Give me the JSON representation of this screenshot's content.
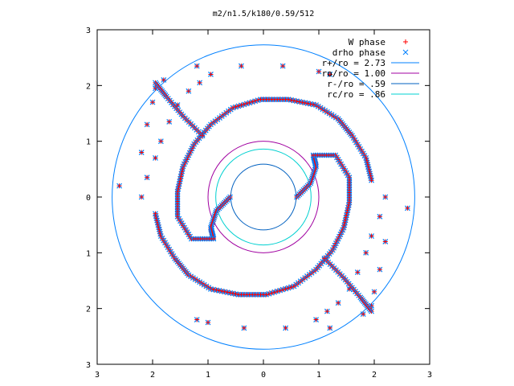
{
  "chart_data": {
    "type": "scatter",
    "title": "m2/n1.5/k180/0.59/512",
    "xlabel": "",
    "ylabel": "",
    "xlim": [
      -3,
      3
    ],
    "ylim": [
      -3,
      3
    ],
    "grid": false,
    "legend_position": "top-right",
    "x_ticks": [
      -3,
      -2,
      -1,
      0,
      1,
      2,
      3
    ],
    "y_ticks": [
      -3,
      -2,
      -1,
      0,
      1,
      2,
      3
    ],
    "x_tick_labels": [
      "3",
      "2",
      "1",
      "0",
      "1",
      "2",
      "3"
    ],
    "y_tick_labels": [
      "3",
      "2",
      "1",
      "0",
      "1",
      "2",
      "3"
    ],
    "series": [
      {
        "name": "W phase",
        "marker": "plus",
        "color": "#ff0000"
      },
      {
        "name": "drho phase",
        "marker": "cross",
        "color": "#0080ff"
      }
    ],
    "circles": [
      {
        "name": "r+/ro = 2.73",
        "radius": 2.73,
        "color": "#0080ff"
      },
      {
        "name": "ro/ro = 1.00",
        "radius": 1.0,
        "color": "#a000a0"
      },
      {
        "name": "r-/ro = .59",
        "radius": 0.59,
        "color": "#0060c0"
      },
      {
        "name": "rc/ro = .86",
        "radius": 0.86,
        "color": "#00d0d0"
      }
    ],
    "point_groups": [
      {
        "arm": "outer-upper",
        "values": [
          [
            -2.6,
            0.2
          ],
          [
            -2.2,
            0.8
          ],
          [
            -2.1,
            1.3
          ],
          [
            -2.0,
            1.7
          ],
          [
            -1.95,
            1.95
          ],
          [
            -1.8,
            2.1
          ],
          [
            -1.2,
            2.35
          ],
          [
            -0.4,
            2.35
          ],
          [
            0.35,
            2.35
          ],
          [
            1.0,
            2.25
          ],
          [
            1.2,
            2.2
          ]
        ]
      },
      {
        "arm": "outer-lower",
        "values": [
          [
            2.6,
            -0.2
          ],
          [
            2.2,
            -0.8
          ],
          [
            2.1,
            -1.3
          ],
          [
            2.0,
            -1.7
          ],
          [
            1.95,
            -1.95
          ],
          [
            1.8,
            -2.1
          ],
          [
            1.2,
            -2.35
          ],
          [
            0.4,
            -2.35
          ],
          [
            -0.35,
            -2.35
          ],
          [
            -1.0,
            -2.25
          ],
          [
            -1.2,
            -2.2
          ]
        ]
      },
      {
        "arm": "mid-ring-left",
        "values": [
          [
            -2.2,
            0.0
          ],
          [
            -2.1,
            0.35
          ],
          [
            -1.95,
            0.7
          ],
          [
            -1.85,
            1.0
          ],
          [
            -1.7,
            1.35
          ],
          [
            -1.55,
            1.65
          ],
          [
            -1.35,
            1.9
          ],
          [
            -1.15,
            2.05
          ],
          [
            -0.95,
            2.2
          ]
        ]
      },
      {
        "arm": "mid-ring-right",
        "values": [
          [
            2.2,
            0.0
          ],
          [
            2.1,
            -0.35
          ],
          [
            1.95,
            -0.7
          ],
          [
            1.85,
            -1.0
          ],
          [
            1.7,
            -1.35
          ],
          [
            1.55,
            -1.65
          ],
          [
            1.35,
            -1.9
          ],
          [
            1.15,
            -2.05
          ],
          [
            0.95,
            -2.2
          ]
        ]
      }
    ],
    "spiral_arms": [
      {
        "arm": "arm-a",
        "values": [
          [
            -0.6,
            0.0
          ],
          [
            -0.85,
            -0.25
          ],
          [
            -0.95,
            -0.55
          ],
          [
            -0.9,
            -0.75
          ],
          [
            -1.3,
            -0.75
          ],
          [
            -1.55,
            -0.35
          ],
          [
            -1.55,
            0.1
          ],
          [
            -1.45,
            0.55
          ],
          [
            -1.25,
            0.95
          ],
          [
            -0.95,
            1.3
          ],
          [
            -0.55,
            1.6
          ],
          [
            -0.05,
            1.75
          ],
          [
            0.45,
            1.75
          ],
          [
            0.95,
            1.65
          ],
          [
            1.35,
            1.4
          ],
          [
            1.6,
            1.1
          ],
          [
            1.85,
            0.7
          ],
          [
            1.95,
            0.3
          ]
        ]
      },
      {
        "arm": "arm-b",
        "values": [
          [
            0.6,
            0.0
          ],
          [
            0.85,
            0.25
          ],
          [
            0.95,
            0.55
          ],
          [
            0.9,
            0.75
          ],
          [
            1.3,
            0.75
          ],
          [
            1.55,
            0.35
          ],
          [
            1.55,
            -0.1
          ],
          [
            1.45,
            -0.55
          ],
          [
            1.25,
            -0.95
          ],
          [
            0.95,
            -1.3
          ],
          [
            0.55,
            -1.6
          ],
          [
            0.05,
            -1.75
          ],
          [
            -0.45,
            -1.75
          ],
          [
            -0.95,
            -1.65
          ],
          [
            -1.35,
            -1.4
          ],
          [
            -1.6,
            -1.1
          ],
          [
            -1.85,
            -0.7
          ],
          [
            -1.95,
            -0.3
          ]
        ]
      },
      {
        "arm": "arm-c",
        "values": [
          [
            -1.95,
            2.05
          ],
          [
            -1.75,
            1.8
          ],
          [
            -1.45,
            1.45
          ],
          [
            -1.1,
            1.1
          ]
        ]
      },
      {
        "arm": "arm-d",
        "values": [
          [
            1.95,
            -2.05
          ],
          [
            1.75,
            -1.8
          ],
          [
            1.45,
            -1.45
          ],
          [
            1.1,
            -1.1
          ]
        ]
      }
    ]
  }
}
